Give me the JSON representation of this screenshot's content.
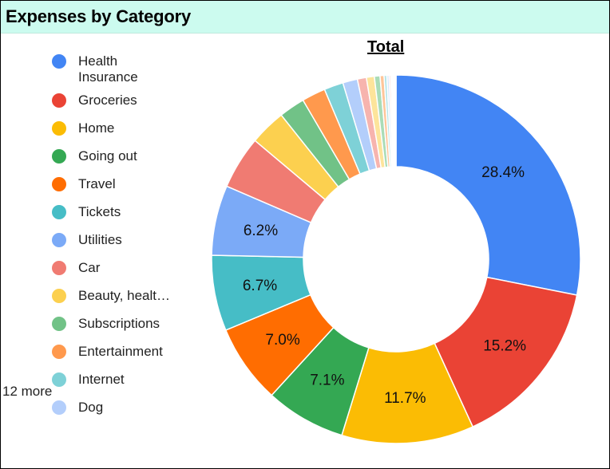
{
  "header": {
    "title": "Expenses by Category"
  },
  "chart_data": {
    "type": "pie",
    "title": "Total",
    "legend_position": "left",
    "donut": true,
    "slices": [
      {
        "label": "Health Insurance",
        "value": 28.4,
        "color": "#4285f4",
        "data_label": "28.4%"
      },
      {
        "label": "Groceries",
        "value": 15.2,
        "color": "#ea4335",
        "data_label": "15.2%"
      },
      {
        "label": "Home",
        "value": 11.7,
        "color": "#fbbc04",
        "data_label": "11.7%"
      },
      {
        "label": "Going out",
        "value": 7.1,
        "color": "#34a853",
        "data_label": "7.1%"
      },
      {
        "label": "Travel",
        "value": 7.0,
        "color": "#ff6d01",
        "data_label": "7.0%"
      },
      {
        "label": "Tickets",
        "value": 6.7,
        "color": "#46bdc6",
        "data_label": "6.7%"
      },
      {
        "label": "Utilities",
        "value": 6.2,
        "color": "#7baaf7",
        "data_label": "6.2%"
      },
      {
        "label": "Car",
        "value": 4.7,
        "color": "#f07b72",
        "data_label": ""
      },
      {
        "label": "Beauty, healt…",
        "value": 3.2,
        "color": "#fcd04f",
        "data_label": ""
      },
      {
        "label": "Subscriptions",
        "value": 2.3,
        "color": "#71c287",
        "data_label": ""
      },
      {
        "label": "Entertainment",
        "value": 2.1,
        "color": "#ff994d",
        "data_label": ""
      },
      {
        "label": "Internet",
        "value": 1.7,
        "color": "#7ed1d7",
        "data_label": ""
      },
      {
        "label": "Dog",
        "value": 1.3,
        "color": "#b3cefb",
        "data_label": ""
      },
      {
        "label": "",
        "value": 0.8,
        "color": "#f7b4ae",
        "data_label": ""
      },
      {
        "label": "",
        "value": 0.7,
        "color": "#fde49b",
        "data_label": ""
      },
      {
        "label": "",
        "value": 0.5,
        "color": "#aadcb7",
        "data_label": ""
      },
      {
        "label": "",
        "value": 0.35,
        "color": "#ffc599",
        "data_label": ""
      },
      {
        "label": "",
        "value": 0.25,
        "color": "#b5e5e8",
        "data_label": ""
      },
      {
        "label": "",
        "value": 0.2,
        "color": "#d9e7fd",
        "data_label": ""
      },
      {
        "label": "",
        "value": 0.15,
        "color": "#fbd9d6",
        "data_label": ""
      },
      {
        "label": "",
        "value": 0.1,
        "color": "#feefc3",
        "data_label": ""
      },
      {
        "label": "",
        "value": 0.1,
        "color": "#d4eedb",
        "data_label": ""
      },
      {
        "label": "",
        "value": 0.1,
        "color": "#ffe2cc",
        "data_label": ""
      },
      {
        "label": "",
        "value": 0.1,
        "color": "#dcf2f4",
        "data_label": ""
      },
      {
        "label": "",
        "value": 0.05,
        "color": "#ecf3fe",
        "data_label": ""
      }
    ],
    "legend_more": "12 more"
  }
}
